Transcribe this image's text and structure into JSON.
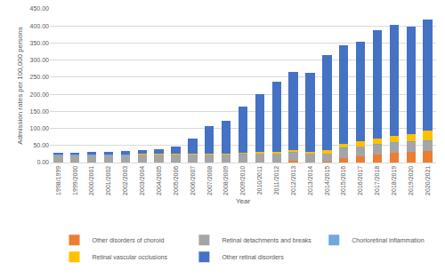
{
  "chart_data": {
    "type": "bar",
    "stacked": true,
    "grid": true,
    "legend": "bottom",
    "x_label": "Year",
    "y_label": "Admission rates per 100,000 persons",
    "categories": [
      "1998/1999",
      "1999/2000",
      "2000/2001",
      "2001/2002",
      "2002/2003",
      "2003/2004",
      "2004/2005",
      "2005/2006",
      "2006/2007",
      "2007/2008",
      "2008/2009",
      "2009/2010",
      "2010/2011",
      "2011/2012",
      "2012/2013",
      "2013/2014",
      "2014/2015",
      "2015/2016",
      "2016/2017",
      "2017/2018",
      "2018/2019",
      "2019/2020",
      "2020/2021"
    ],
    "ylim": [
      0,
      450
    ],
    "yticks": [
      {
        "value": 0,
        "label": "0.00"
      },
      {
        "value": 50,
        "label": "50.00"
      },
      {
        "value": 100,
        "label": "100.00"
      },
      {
        "value": 150,
        "label": "150.00"
      },
      {
        "value": 200,
        "label": "200.00"
      },
      {
        "value": 250,
        "label": "250.00"
      },
      {
        "value": 300,
        "label": "300.00"
      },
      {
        "value": 350,
        "label": "350.00"
      },
      {
        "value": 400,
        "label": "400.00"
      },
      {
        "value": 450,
        "label": "450.00"
      }
    ],
    "series": [
      {
        "name": "Other disorders of choroid",
        "color": "#ED7D31",
        "values": [
          0.5,
          0.5,
          0.5,
          0.5,
          0.5,
          0.5,
          0.5,
          0.5,
          0.5,
          0.5,
          0.5,
          0.5,
          0.5,
          1,
          4,
          1,
          2,
          14,
          18,
          24,
          28,
          32,
          33
        ]
      },
      {
        "name": "Retinal detachments and breaks",
        "color": "#A5A5A5",
        "values": [
          21,
          21,
          21,
          21,
          21,
          22,
          22,
          23,
          23,
          23,
          23,
          24,
          25,
          25,
          25,
          24,
          24,
          27,
          28,
          28,
          29,
          29,
          30
        ]
      },
      {
        "name": "Chorioretinal inflammation",
        "color": "#6FA8DC",
        "values": [
          1,
          1,
          1,
          1,
          1,
          1,
          1,
          1,
          1,
          1,
          1,
          1,
          1,
          1,
          1,
          1,
          1,
          2,
          2,
          2,
          2,
          2,
          2
        ]
      },
      {
        "name": "Retinal vascular occlusions",
        "color": "#FFC000",
        "values": [
          1,
          1,
          1,
          1.5,
          2,
          2,
          2,
          2,
          2,
          2,
          2,
          3,
          4,
          5,
          6,
          6,
          9,
          11,
          14,
          16,
          20,
          20,
          28
        ]
      },
      {
        "name": "Other retinal disorders",
        "color": "#4472C4",
        "values": [
          5.5,
          5.5,
          6.5,
          7,
          9.5,
          11.5,
          14.5,
          19.5,
          44.5,
          79.5,
          95.5,
          136.5,
          170.5,
          206,
          229,
          231,
          279,
          289,
          291,
          317,
          325,
          316,
          326
        ]
      }
    ]
  }
}
